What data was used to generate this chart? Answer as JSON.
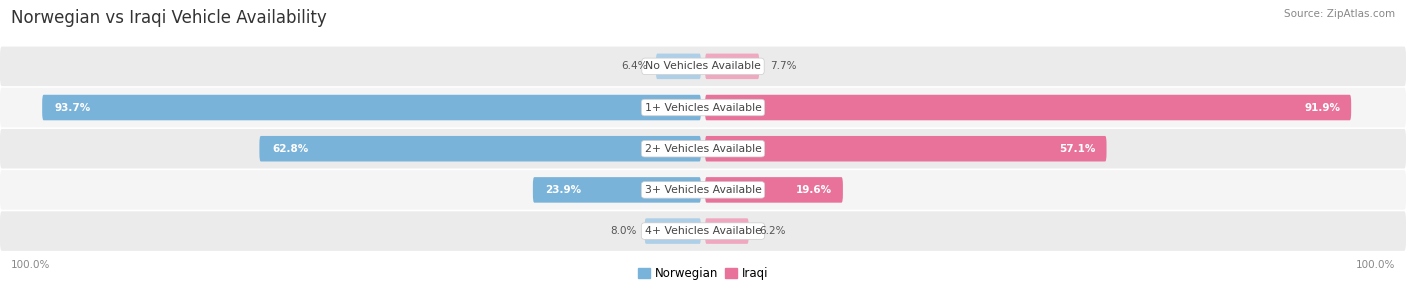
{
  "title": "Norwegian vs Iraqi Vehicle Availability",
  "source": "Source: ZipAtlas.com",
  "categories": [
    "No Vehicles Available",
    "1+ Vehicles Available",
    "2+ Vehicles Available",
    "3+ Vehicles Available",
    "4+ Vehicles Available"
  ],
  "norwegian_values": [
    6.4,
    93.7,
    62.8,
    23.9,
    8.0
  ],
  "iraqi_values": [
    7.7,
    91.9,
    57.1,
    19.6,
    6.2
  ],
  "norwegian_color_dark": "#7ab3d9",
  "norwegian_color_light": "#aecfe8",
  "iraqi_color_dark": "#e8729a",
  "iraqi_color_light": "#f0a8c0",
  "bg_color": "#ffffff",
  "row_bg_odd": "#ebebeb",
  "row_bg_even": "#f5f5f5",
  "bar_height": 0.62,
  "figsize": [
    14.06,
    2.86
  ],
  "dpi": 100,
  "title_fontsize": 12,
  "label_fontsize": 7.8,
  "value_fontsize": 7.5,
  "legend_fontsize": 8.5,
  "source_fontsize": 7.5
}
